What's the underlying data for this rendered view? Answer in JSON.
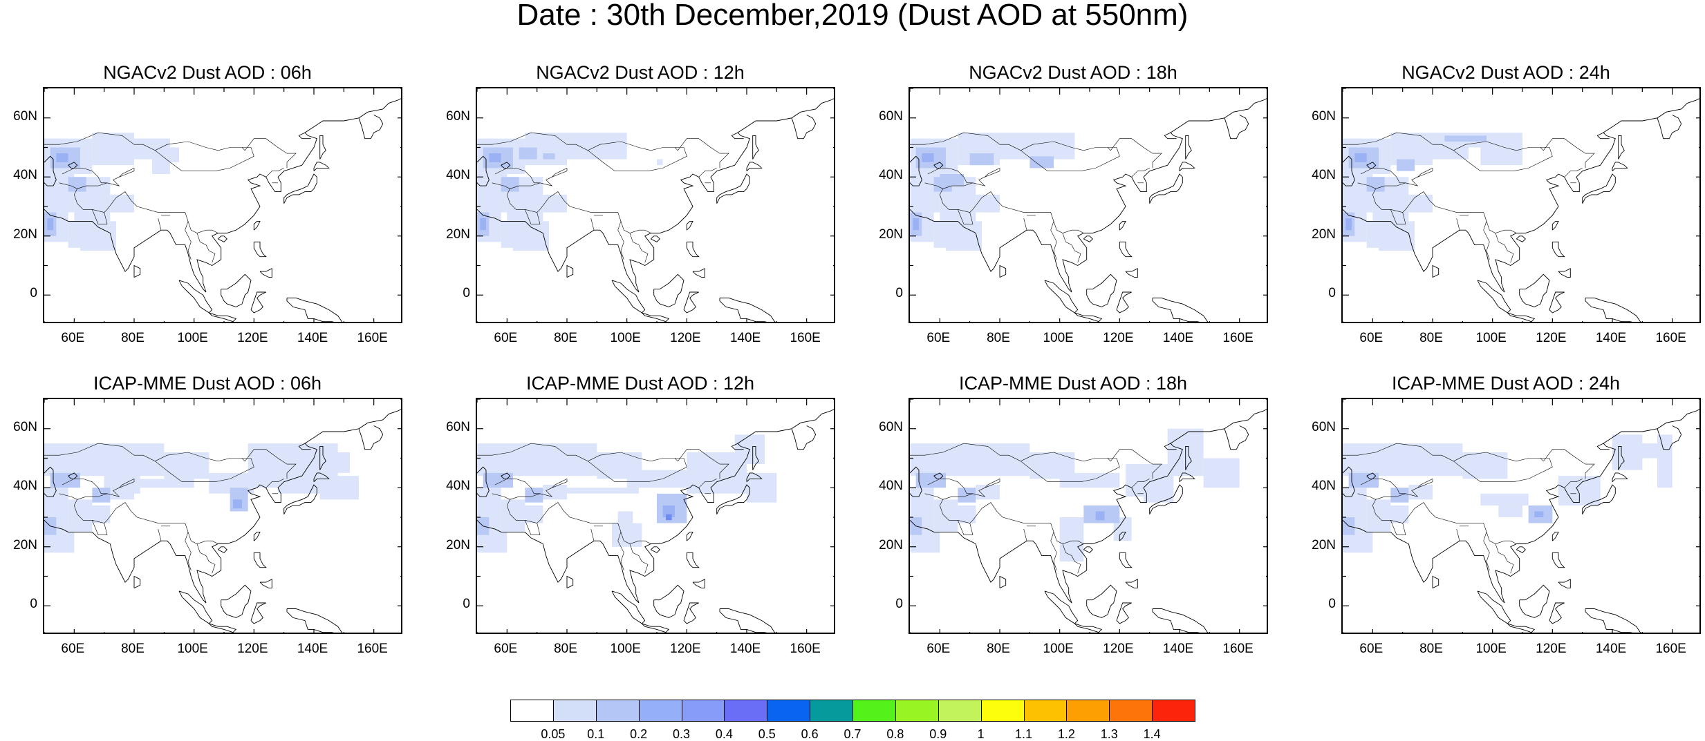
{
  "title": "Date : 30th December,2019 (Dust AOD at 550nm)",
  "lat_labels": [
    "60N",
    "40N",
    "20N",
    "0"
  ],
  "lon_labels": [
    "60E",
    "80E",
    "100E",
    "120E",
    "140E",
    "160E"
  ],
  "panels": [
    {
      "title": "NGACv2 Dust AOD : 06h",
      "model": "NGACv2",
      "hour": "06h"
    },
    {
      "title": "NGACv2 Dust AOD : 12h",
      "model": "NGACv2",
      "hour": "12h"
    },
    {
      "title": "NGACv2 Dust AOD : 18h",
      "model": "NGACv2",
      "hour": "18h"
    },
    {
      "title": "NGACv2 Dust AOD : 24h",
      "model": "NGACv2",
      "hour": "24h"
    },
    {
      "title": "ICAP-MME Dust AOD : 06h",
      "model": "ICAP-MME",
      "hour": "06h"
    },
    {
      "title": "ICAP-MME Dust AOD : 12h",
      "model": "ICAP-MME",
      "hour": "12h"
    },
    {
      "title": "ICAP-MME Dust AOD : 18h",
      "model": "ICAP-MME",
      "hour": "18h"
    },
    {
      "title": "ICAP-MME Dust AOD : 24h",
      "model": "ICAP-MME",
      "hour": "24h"
    }
  ],
  "colorbar": {
    "labels": [
      "0.05",
      "0.1",
      "0.2",
      "0.3",
      "0.4",
      "0.5",
      "0.6",
      "0.7",
      "0.8",
      "0.9",
      "1",
      "1.1",
      "1.2",
      "1.3",
      "1.4"
    ],
    "colors": [
      "#ffffff",
      "#d3def8",
      "#b3c6f6",
      "#96b0f7",
      "#869cf7",
      "#6a6df5",
      "#0964ef",
      "#069a9c",
      "#55f11a",
      "#99f424",
      "#c3f35b",
      "#fdff0a",
      "#fdc101",
      "#fd9e02",
      "#fd7408",
      "#fc240a"
    ]
  },
  "dust_palette": {
    "light": "#dbe4fa",
    "medium": "#b9c9f6",
    "strong": "#9ab1f3",
    "peak": "#6e8cee"
  },
  "map_extent": {
    "lon_min": 50,
    "lon_max": 170,
    "lat_min": -10,
    "lat_max": 70
  }
}
